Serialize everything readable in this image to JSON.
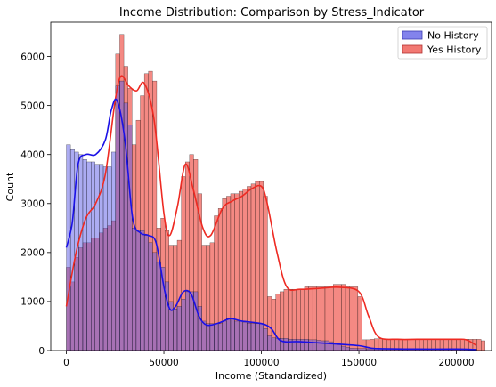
{
  "chart_data": {
    "type": "histogram",
    "title": "Income Distribution: Comparison by Stress_Indicator",
    "xlabel": "Income (Standardized)",
    "ylabel": "Count",
    "xlim": [
      -8000,
      218000
    ],
    "ylim": [
      0,
      6700
    ],
    "xticks": [
      0,
      50000,
      100000,
      150000,
      200000
    ],
    "xtick_labels": [
      "0",
      "50000",
      "100000",
      "150000",
      "200000"
    ],
    "yticks": [
      0,
      1000,
      2000,
      3000,
      4000,
      5000,
      6000
    ],
    "ytick_labels": [
      "0",
      "1000",
      "2000",
      "3000",
      "4000",
      "5000",
      "6000"
    ],
    "legend_position": "upper-right",
    "grid": false,
    "series": [
      {
        "name": "Yes History",
        "color": "#f0625a",
        "bin_start": 0,
        "bin_width": 2105,
        "counts": [
          1700,
          1400,
          1900,
          2100,
          2200,
          2200,
          2300,
          2300,
          2400,
          2500,
          2550,
          2650,
          6050,
          6450,
          5800,
          5350,
          4200,
          4700,
          5200,
          5650,
          5700,
          5500,
          2500,
          2700,
          2450,
          2150,
          2150,
          2250,
          3550,
          3850,
          4000,
          3900,
          3200,
          2150,
          2150,
          2200,
          2750,
          2900,
          3100,
          3150,
          3200,
          3200,
          3250,
          3300,
          3350,
          3400,
          3450,
          3450,
          3150,
          1100,
          1050,
          1150,
          1200,
          1250,
          1250,
          1250,
          1250,
          1250,
          1300,
          1300,
          1300,
          1300,
          1300,
          1300,
          1300,
          1350,
          1350,
          1350,
          1300,
          1300,
          1300,
          1100,
          220,
          220,
          230,
          240,
          240,
          230,
          230,
          230,
          230,
          230,
          230,
          230,
          230,
          230,
          230,
          230,
          230,
          230,
          230,
          230,
          230,
          230,
          230,
          230,
          230,
          230,
          230,
          230,
          230,
          200
        ],
        "kde": [
          [
            0,
            900
          ],
          [
            5000,
            2000
          ],
          [
            10000,
            2700
          ],
          [
            15000,
            3000
          ],
          [
            20000,
            3600
          ],
          [
            25000,
            5100
          ],
          [
            28000,
            5600
          ],
          [
            32000,
            5400
          ],
          [
            36000,
            5300
          ],
          [
            40000,
            5450
          ],
          [
            45000,
            4700
          ],
          [
            50000,
            2800
          ],
          [
            53000,
            2350
          ],
          [
            57000,
            2950
          ],
          [
            61000,
            3800
          ],
          [
            65000,
            3300
          ],
          [
            70000,
            2500
          ],
          [
            74000,
            2350
          ],
          [
            80000,
            2900
          ],
          [
            85000,
            3050
          ],
          [
            90000,
            3150
          ],
          [
            95000,
            3300
          ],
          [
            100000,
            3350
          ],
          [
            103000,
            3000
          ],
          [
            108000,
            2000
          ],
          [
            113000,
            1300
          ],
          [
            120000,
            1250
          ],
          [
            130000,
            1270
          ],
          [
            140000,
            1290
          ],
          [
            150000,
            1200
          ],
          [
            155000,
            700
          ],
          [
            160000,
            280
          ],
          [
            170000,
            230
          ],
          [
            180000,
            230
          ],
          [
            190000,
            230
          ],
          [
            200000,
            230
          ],
          [
            205000,
            220
          ],
          [
            210000,
            110
          ]
        ]
      },
      {
        "name": "No History",
        "color": "#5a5ae6",
        "bin_start": 0,
        "bin_width": 2105,
        "counts": [
          4200,
          4100,
          4050,
          4000,
          3900,
          3850,
          3850,
          3800,
          3800,
          3750,
          3750,
          4050,
          5400,
          5500,
          5050,
          4600,
          2500,
          2450,
          2450,
          2350,
          2200,
          2000,
          1800,
          1700,
          1400,
          1000,
          850,
          900,
          1050,
          1200,
          1200,
          1200,
          900,
          600,
          550,
          550,
          550,
          550,
          600,
          650,
          650,
          600,
          600,
          580,
          560,
          550,
          550,
          550,
          450,
          300,
          260,
          250,
          250,
          250,
          230,
          230,
          230,
          230,
          230,
          220,
          220,
          210,
          200,
          200,
          180,
          150,
          120,
          90,
          70,
          50,
          45,
          40,
          40,
          35,
          35,
          30,
          30,
          30,
          30,
          30,
          30,
          30,
          30,
          30,
          30,
          30,
          30,
          30,
          30,
          30,
          30,
          30,
          30,
          30,
          30,
          30,
          30,
          30,
          30,
          30
        ],
        "kde": [
          [
            0,
            2100
          ],
          [
            3000,
            2600
          ],
          [
            6000,
            3800
          ],
          [
            10000,
            4000
          ],
          [
            15000,
            4000
          ],
          [
            20000,
            4300
          ],
          [
            23000,
            4900
          ],
          [
            26000,
            5100
          ],
          [
            30000,
            4300
          ],
          [
            34000,
            2700
          ],
          [
            38000,
            2400
          ],
          [
            42000,
            2350
          ],
          [
            46000,
            2200
          ],
          [
            50000,
            1300
          ],
          [
            53000,
            850
          ],
          [
            56000,
            900
          ],
          [
            60000,
            1200
          ],
          [
            64000,
            1150
          ],
          [
            68000,
            700
          ],
          [
            72000,
            520
          ],
          [
            78000,
            560
          ],
          [
            84000,
            650
          ],
          [
            90000,
            600
          ],
          [
            100000,
            550
          ],
          [
            105000,
            450
          ],
          [
            110000,
            200
          ],
          [
            120000,
            180
          ],
          [
            140000,
            130
          ],
          [
            150000,
            100
          ],
          [
            155000,
            60
          ],
          [
            160000,
            40
          ],
          [
            180000,
            30
          ],
          [
            200000,
            30
          ],
          [
            210000,
            20
          ]
        ]
      }
    ]
  }
}
